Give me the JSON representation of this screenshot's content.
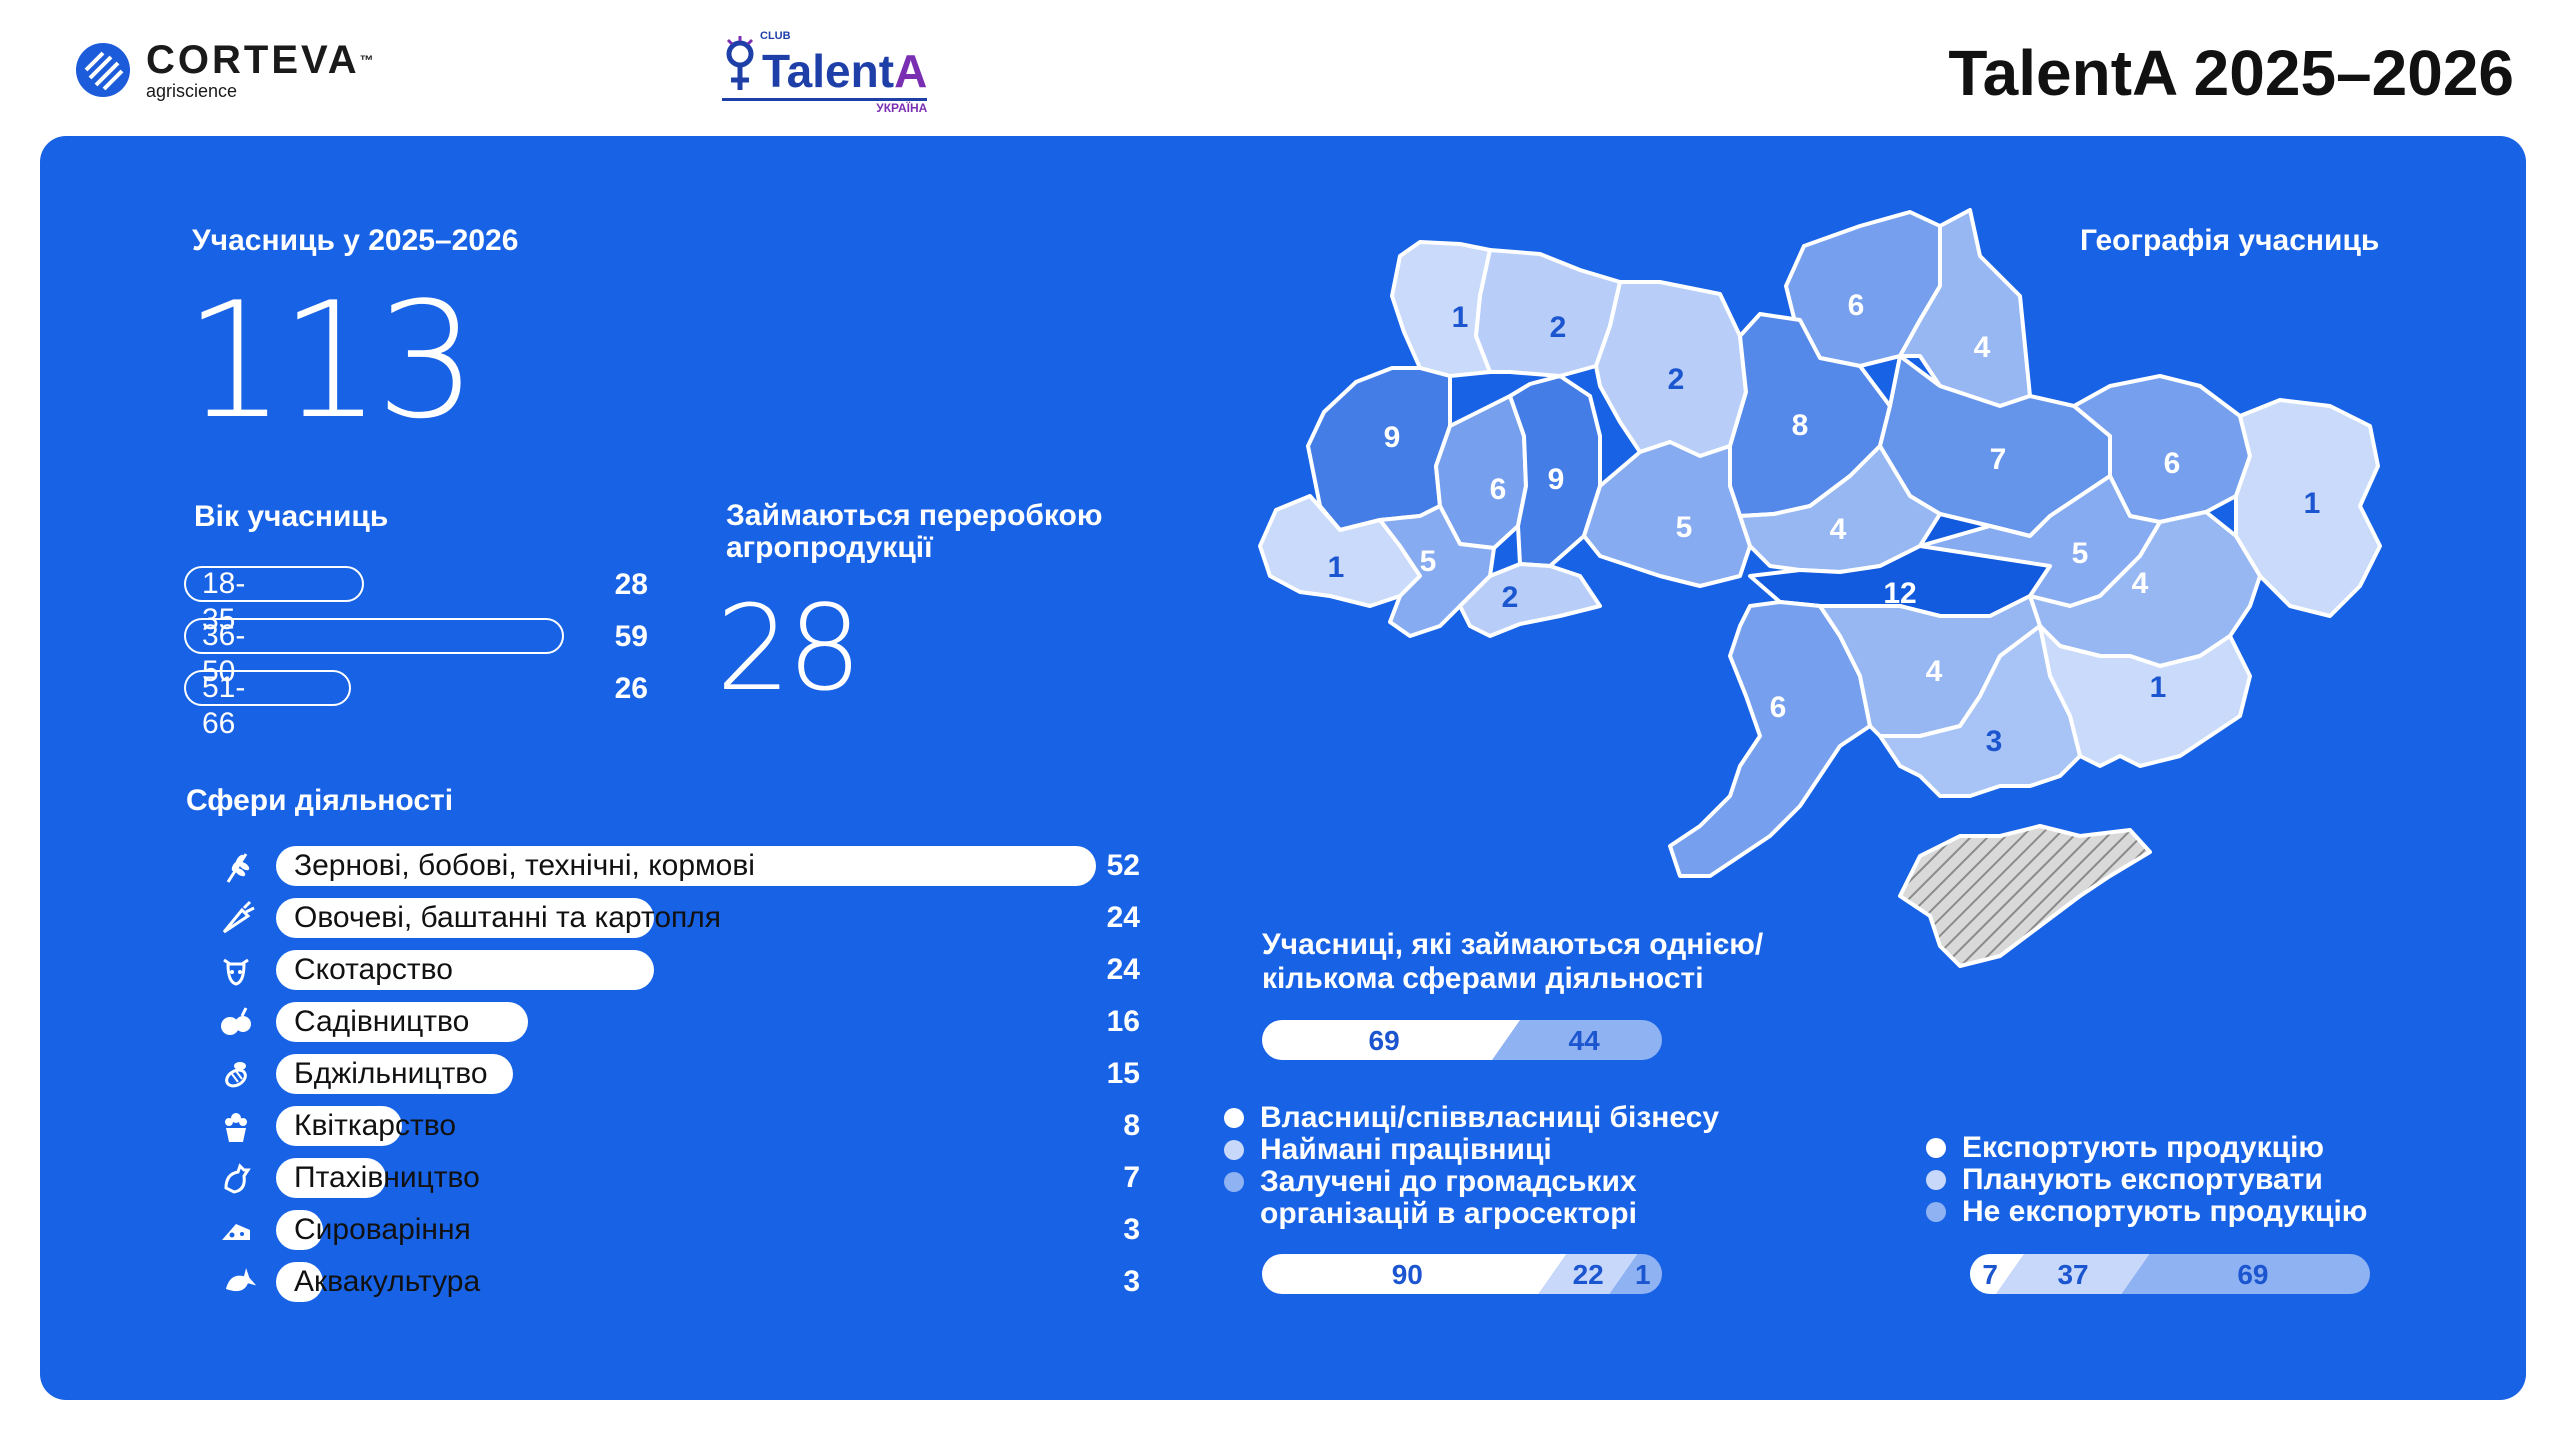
{
  "header": {
    "brand_name": "CORTEVA",
    "brand_tm": "™",
    "brand_sub": "agriscience",
    "club_small": "CLUB",
    "club_name_main": "Talent",
    "club_name_accent": "A",
    "club_country": "УКРАЇНА",
    "title": "TalentA 2025–2026"
  },
  "participants": {
    "label": "Учасниць у 2025–2026",
    "value": "113"
  },
  "age": {
    "label": "Вік учасниць",
    "groups": [
      {
        "label": "18-35",
        "value": 28
      },
      {
        "label": "36-50",
        "value": 59
      },
      {
        "label": "51-66",
        "value": 26
      }
    ]
  },
  "processing": {
    "label_line1": "Займаються переробкою",
    "label_line2": "агропродукції",
    "value": "28"
  },
  "activities": {
    "label": "Сфери діяльності",
    "items": [
      {
        "label": "Зернові, бобові, технічні, кормові",
        "value": 52,
        "icon": "wheat-icon"
      },
      {
        "label": "Овочеві, баштанні та картопля",
        "value": 24,
        "icon": "carrot-icon"
      },
      {
        "label": "Скотарство",
        "value": 24,
        "icon": "cow-icon"
      },
      {
        "label": "Садівництво",
        "value": 16,
        "icon": "fruit-icon"
      },
      {
        "label": "Бджільництво",
        "value": 15,
        "icon": "bee-icon"
      },
      {
        "label": "Квіткарство",
        "value": 8,
        "icon": "flower-pot-icon"
      },
      {
        "label": "Птахівництво",
        "value": 7,
        "icon": "chicken-icon"
      },
      {
        "label": "Сироваріння",
        "value": 3,
        "icon": "cheese-icon"
      },
      {
        "label": "Аквакультура",
        "value": 3,
        "icon": "fish-icon"
      }
    ]
  },
  "geography": {
    "label": "Географія учасниць",
    "regions": [
      {
        "value": 1
      },
      {
        "value": 2
      },
      {
        "value": 2
      },
      {
        "value": 6
      },
      {
        "value": 4
      },
      {
        "value": 9
      },
      {
        "value": 6
      },
      {
        "value": 9
      },
      {
        "value": 8
      },
      {
        "value": 7
      },
      {
        "value": 6
      },
      {
        "value": 1
      },
      {
        "value": 1
      },
      {
        "value": 5
      },
      {
        "value": 2
      },
      {
        "value": 5
      },
      {
        "value": 4
      },
      {
        "value": 12
      },
      {
        "value": 5
      },
      {
        "value": 4
      },
      {
        "value": 6
      },
      {
        "value": 4
      },
      {
        "value": 1
      },
      {
        "value": 3
      }
    ]
  },
  "spheres": {
    "label_line1": "Учасниці, які займаються однією/",
    "label_line2": "кількома сферами діяльності",
    "segments": [
      {
        "value": 69
      },
      {
        "value": 44
      }
    ]
  },
  "business": {
    "legend": [
      {
        "label_line1": "Власниці/співвласниці бізнесу",
        "label_line2": "",
        "color": "#ffffff"
      },
      {
        "label_line1": "Наймані працівниці",
        "label_line2": "",
        "color": "#c7d8fb"
      },
      {
        "label_line1": "Залучені до громадських",
        "label_line2": "організацій в агросекторі",
        "color": "#8fb2f3"
      }
    ],
    "segments": [
      {
        "value": 90
      },
      {
        "value": 22
      },
      {
        "value": 1
      }
    ]
  },
  "export": {
    "legend": [
      {
        "label": "Експортують продукцію",
        "color": "#ffffff"
      },
      {
        "label": "Планують експортувати",
        "color": "#c7d8fb"
      },
      {
        "label": "Не експортують продукцію",
        "color": "#8fb2f3"
      }
    ],
    "segments": [
      {
        "value": 7
      },
      {
        "value": 37
      },
      {
        "value": 69
      }
    ]
  },
  "chart_data": [
    {
      "type": "bar",
      "title": "Вік учасниць",
      "categories": [
        "18-35",
        "36-50",
        "51-66"
      ],
      "values": [
        28,
        59,
        26
      ]
    },
    {
      "type": "bar",
      "title": "Сфери діяльності",
      "categories": [
        "Зернові, бобові, технічні, кормові",
        "Овочеві, баштанні та картопля",
        "Скотарство",
        "Садівництво",
        "Бджільництво",
        "Квіткарство",
        "Птахівництво",
        "Сироваріння",
        "Аквакультура"
      ],
      "values": [
        52,
        24,
        24,
        16,
        15,
        8,
        7,
        3,
        3
      ]
    },
    {
      "type": "bar",
      "title": "Учасниці, які займаються однією/кількома сферами діяльності",
      "values": [
        69,
        44
      ]
    },
    {
      "type": "bar",
      "series": [
        {
          "name": "Власниці/співвласниці бізнесу",
          "values": [
            90
          ]
        },
        {
          "name": "Наймані працівниці",
          "values": [
            22
          ]
        },
        {
          "name": "Залучені до громадських організацій в агросекторі",
          "values": [
            1
          ]
        }
      ]
    },
    {
      "type": "bar",
      "series": [
        {
          "name": "Експортують продукцію",
          "values": [
            7
          ]
        },
        {
          "name": "Планують експортувати",
          "values": [
            37
          ]
        },
        {
          "name": "Не експортують продукцію",
          "values": [
            69
          ]
        }
      ]
    }
  ]
}
